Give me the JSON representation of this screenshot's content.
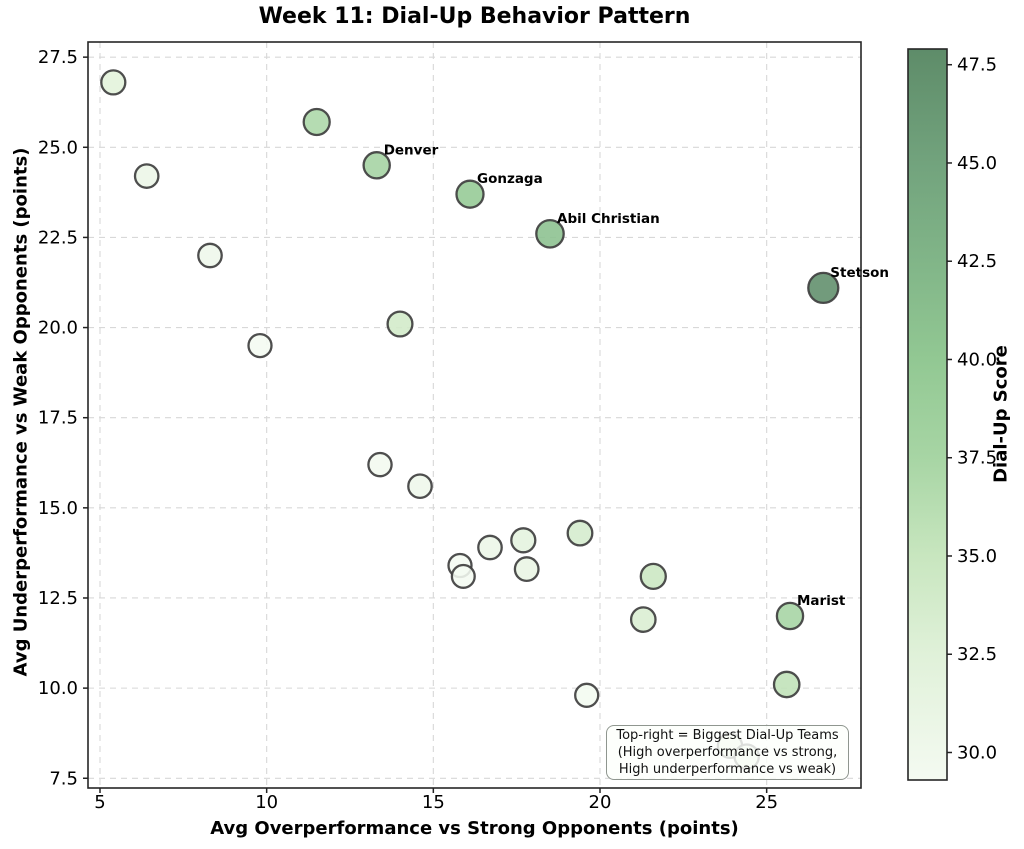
{
  "title": "Week 11: Dial-Up Behavior Pattern",
  "chart_data": {
    "type": "scatter",
    "title": "Week 11: Dial-Up Behavior Pattern",
    "xlabel": "Avg Overperformance vs Strong Opponents (points)",
    "ylabel": "Avg Underperformance vs Weak Opponents (points)",
    "xlim": [
      4.64,
      27.83
    ],
    "ylim": [
      7.23,
      27.92
    ],
    "xticks": [
      5,
      10,
      15,
      20,
      25
    ],
    "yticks": [
      7.5,
      10.0,
      12.5,
      15.0,
      17.5,
      20.0,
      22.5,
      25.0,
      27.5
    ],
    "grid": true,
    "legend_position": "none",
    "points": [
      {
        "x": 5.4,
        "y": 26.8,
        "score": 32.2,
        "label": ""
      },
      {
        "x": 6.4,
        "y": 24.2,
        "score": 30.6,
        "label": ""
      },
      {
        "x": 8.3,
        "y": 22.0,
        "score": 30.3,
        "label": ""
      },
      {
        "x": 9.8,
        "y": 19.5,
        "score": 29.3,
        "label": ""
      },
      {
        "x": 11.5,
        "y": 25.7,
        "score": 37.2,
        "label": ""
      },
      {
        "x": 13.3,
        "y": 24.5,
        "score": 37.8,
        "label": "Denver"
      },
      {
        "x": 14.0,
        "y": 20.1,
        "score": 34.1,
        "label": ""
      },
      {
        "x": 13.4,
        "y": 16.2,
        "score": 29.6,
        "label": ""
      },
      {
        "x": 14.6,
        "y": 15.6,
        "score": 30.2,
        "label": ""
      },
      {
        "x": 16.1,
        "y": 23.7,
        "score": 39.8,
        "label": "Gonzaga"
      },
      {
        "x": 18.5,
        "y": 22.6,
        "score": 41.1,
        "label": "Abil Christian"
      },
      {
        "x": 26.7,
        "y": 21.1,
        "score": 47.8,
        "label": "Stetson"
      },
      {
        "x": 15.8,
        "y": 13.4,
        "score": 29.2,
        "label": ""
      },
      {
        "x": 15.9,
        "y": 13.1,
        "score": 29.0,
        "label": ""
      },
      {
        "x": 16.7,
        "y": 13.9,
        "score": 30.6,
        "label": ""
      },
      {
        "x": 17.7,
        "y": 14.1,
        "score": 31.8,
        "label": ""
      },
      {
        "x": 17.8,
        "y": 13.3,
        "score": 31.1,
        "label": ""
      },
      {
        "x": 19.4,
        "y": 14.3,
        "score": 33.7,
        "label": ""
      },
      {
        "x": 21.6,
        "y": 13.1,
        "score": 34.7,
        "label": ""
      },
      {
        "x": 21.3,
        "y": 11.9,
        "score": 33.2,
        "label": ""
      },
      {
        "x": 25.7,
        "y": 12.0,
        "score": 37.7,
        "label": "Marist"
      },
      {
        "x": 25.6,
        "y": 10.1,
        "score": 35.7,
        "label": ""
      },
      {
        "x": 19.6,
        "y": 9.8,
        "score": 29.4,
        "label": ""
      },
      {
        "x": 23.9,
        "y": 8.4,
        "score": 32.3,
        "label": ""
      },
      {
        "x": 24.4,
        "y": 8.1,
        "score": 32.5,
        "label": ""
      }
    ],
    "colorbar": {
      "label": "Dial-Up Score",
      "min": 29.3,
      "max": 47.9,
      "ticks": [
        30.0,
        32.5,
        35.0,
        37.5,
        40.0,
        42.5,
        45.0,
        47.5
      ],
      "stops": [
        {
          "v": 29.3,
          "c": "#f4faf1"
        },
        {
          "v": 32.5,
          "c": "#e0f1d9"
        },
        {
          "v": 35.0,
          "c": "#c8e6bf"
        },
        {
          "v": 37.5,
          "c": "#a7d5a4"
        },
        {
          "v": 40.0,
          "c": "#92c893"
        },
        {
          "v": 42.5,
          "c": "#81b588"
        },
        {
          "v": 45.0,
          "c": "#72a37d"
        },
        {
          "v": 47.9,
          "c": "#5e8c69"
        }
      ]
    },
    "annotation": {
      "lines": [
        "Top-right = Biggest Dial-Up Teams",
        "(High overperformance vs strong,",
        "High underperformance vs weak)"
      ]
    }
  },
  "colors": {
    "marker_edge": "#3f3f3f",
    "grid": "#d8d8d8",
    "spine": "#262626",
    "text": "#000000",
    "tick": "#222222",
    "annotation_border": "#8f968f",
    "background": "#ffffff"
  }
}
